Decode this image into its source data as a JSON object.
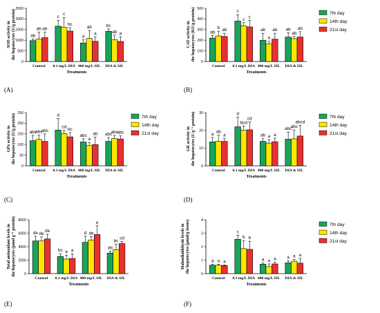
{
  "chart_data": [
    {
      "type": "bar",
      "panel": "(A)",
      "ylabel": "SOD activity in the hepatocytes (U/g protein)",
      "xlabel": "Treatments",
      "categories": [
        "Control",
        "0.1 mg/L DIA",
        "400 mg/L SIL",
        "DIA & SIL"
      ],
      "ylim": [
        0,
        2500
      ],
      "yticks": [
        0,
        500,
        1000,
        1500,
        2000,
        2500
      ],
      "series": [
        {
          "name": "7th day",
          "values": [
            980,
            1660,
            870,
            1420
          ],
          "errors": [
            80,
            280,
            150,
            110
          ],
          "labels": [
            "ab",
            "c",
            "a",
            "bc"
          ]
        },
        {
          "name": "14th day",
          "values": [
            1050,
            1610,
            1080,
            1020
          ],
          "errors": [
            330,
            460,
            380,
            220
          ],
          "labels": [
            "ab",
            "c",
            "ab",
            "ab"
          ]
        },
        {
          "name": "21st day",
          "values": [
            1120,
            1430,
            950,
            940
          ],
          "errors": [
            260,
            160,
            200,
            220
          ],
          "labels": [
            "ab",
            "bc",
            "a",
            "a"
          ]
        }
      ]
    },
    {
      "type": "bar",
      "panel": "(B)",
      "ylabel": "CAT activity in the hepatocytes (KU/g protein)",
      "xlabel": "Treatments",
      "categories": [
        "Control",
        "0.1 mg/L DIA",
        "400 mg/L SIL",
        "DIA & SIL"
      ],
      "ylim": [
        0,
        500
      ],
      "yticks": [
        0,
        100,
        200,
        300,
        400,
        500
      ],
      "series": [
        {
          "name": "7th day",
          "values": [
            220,
            380,
            200,
            230
          ],
          "errors": [
            25,
            60,
            65,
            40
          ],
          "labels": [
            "ab",
            "c",
            "ab",
            "ab"
          ]
        },
        {
          "name": "14th day",
          "values": [
            240,
            335,
            165,
            215
          ],
          "errors": [
            45,
            30,
            25,
            20
          ],
          "labels": [
            "b",
            "c",
            "a",
            "ab"
          ]
        },
        {
          "name": "21st day",
          "values": [
            235,
            325,
            210,
            230
          ],
          "errors": [
            30,
            60,
            55,
            50
          ],
          "labels": [
            "ab",
            "c",
            "ab",
            "ab"
          ]
        }
      ]
    },
    {
      "type": "bar",
      "panel": "(C)",
      "ylabel": "GPx activity in the hepatocytes (U/g protein)",
      "xlabel": "Treatments",
      "categories": [
        "Control",
        "0.1 mg/L DIA",
        "400 mg/L SIL",
        "DIA & SIL"
      ],
      "ylim": [
        0,
        250
      ],
      "yticks": [
        0,
        50,
        100,
        150,
        200,
        250
      ],
      "series": [
        {
          "name": "7th day",
          "values": [
            118,
            168,
            112,
            115
          ],
          "errors": [
            25,
            55,
            15,
            18
          ],
          "labels": [
            "abc",
            "d",
            "abc",
            "abc"
          ]
        },
        {
          "name": "14th day",
          "values": [
            124,
            152,
            95,
            128
          ],
          "errors": [
            20,
            15,
            15,
            15
          ],
          "labels": [
            "abc",
            "cd",
            "a",
            "abc"
          ]
        },
        {
          "name": "21st day",
          "values": [
            115,
            136,
            100,
            126
          ],
          "errors": [
            35,
            20,
            35,
            15
          ],
          "labels": [
            "abc",
            "bc",
            "ab",
            "abc"
          ]
        }
      ]
    },
    {
      "type": "bar",
      "panel": "(D)",
      "ylabel": "GR activity in the hepatocytes (U g⁻¹ protein)",
      "xlabel": "Treatments",
      "categories": [
        "Control",
        "0.1 mg/L DIA",
        "400 mg/L SIL",
        "DIA & SIL"
      ],
      "ylim": [
        0,
        30
      ],
      "yticks": [
        0,
        10,
        20,
        30
      ],
      "series": [
        {
          "name": "7th day",
          "values": [
            13.5,
            22,
            13.8,
            15
          ],
          "errors": [
            2.5,
            5.5,
            1.5,
            4
          ],
          "labels": [
            "a",
            "d",
            "ab",
            "abc"
          ]
        },
        {
          "name": "14th day",
          "values": [
            13.8,
            20,
            12.8,
            15.2
          ],
          "errors": [
            3.5,
            2.5,
            2,
            5
          ],
          "labels": [
            "ab",
            "bcd",
            "a",
            "abc"
          ]
        },
        {
          "name": "21st day",
          "values": [
            13.8,
            20.3,
            13.6,
            16.8
          ],
          "errors": [
            1.5,
            4.5,
            2,
            6
          ],
          "labels": [
            "a",
            "cd",
            "a",
            "abcd"
          ]
        }
      ]
    },
    {
      "type": "bar",
      "panel": "(E)",
      "ylabel": "Total antioxidant levels in the hepatocytes (pmol g⁻¹ protein)",
      "xlabel": "Treatments",
      "categories": [
        "Control",
        "0.1 mg/L DIA",
        "400 mg/L SIL",
        "DIA & SIL"
      ],
      "ylim": [
        0,
        8000
      ],
      "yticks": [
        0,
        2000,
        4000,
        6000,
        8000
      ],
      "series": [
        {
          "name": "7th day",
          "values": [
            4850,
            2550,
            4650,
            3050
          ],
          "errors": [
            700,
            400,
            900,
            300
          ],
          "labels": [
            "de",
            "bc",
            "d",
            "ab"
          ]
        },
        {
          "name": "14th day",
          "values": [
            4850,
            2150,
            5000,
            3550
          ],
          "errors": [
            600,
            600,
            500,
            800
          ],
          "labels": [
            "de",
            "a",
            "de",
            "bc"
          ]
        },
        {
          "name": "21st day",
          "values": [
            5150,
            2250,
            5800,
            4450
          ],
          "errors": [
            700,
            700,
            1300,
            300
          ],
          "labels": [
            "de",
            "a",
            "e",
            "cd"
          ]
        }
      ]
    },
    {
      "type": "bar",
      "panel": "(F)",
      "ylabel": "Malondialdehyde levels in the hepatocytes (μmol/g tissue)",
      "xlabel": "Treatments",
      "categories": [
        "Control",
        "0.1 mg/L DIA",
        "400 mg/L SIL",
        "DIA & SIL"
      ],
      "ylim": [
        0,
        4
      ],
      "yticks": [
        0,
        1,
        2,
        3,
        4
      ],
      "series": [
        {
          "name": "7th day",
          "values": [
            0.62,
            2.55,
            0.7,
            0.8
          ],
          "errors": [
            0.08,
            0.3,
            0.1,
            0.15
          ],
          "labels": [
            "a",
            "c",
            "a",
            "a"
          ]
        },
        {
          "name": "14th day",
          "values": [
            0.62,
            1.85,
            0.52,
            0.92
          ],
          "errors": [
            0.08,
            0.6,
            0.2,
            0.12
          ],
          "labels": [
            "a",
            "b",
            "a",
            "a"
          ]
        },
        {
          "name": "21st day",
          "values": [
            0.6,
            1.8,
            0.72,
            0.78
          ],
          "errors": [
            0.05,
            0.6,
            0.12,
            0.35
          ],
          "labels": [
            "a",
            "b",
            "a",
            "a"
          ]
        }
      ]
    }
  ],
  "legend": {
    "items": [
      {
        "label": "7th day",
        "color": "#1aa35a"
      },
      {
        "label": "14th day",
        "color": "#ffe600"
      },
      {
        "label": "21st day",
        "color": "#e8312f"
      }
    ]
  }
}
